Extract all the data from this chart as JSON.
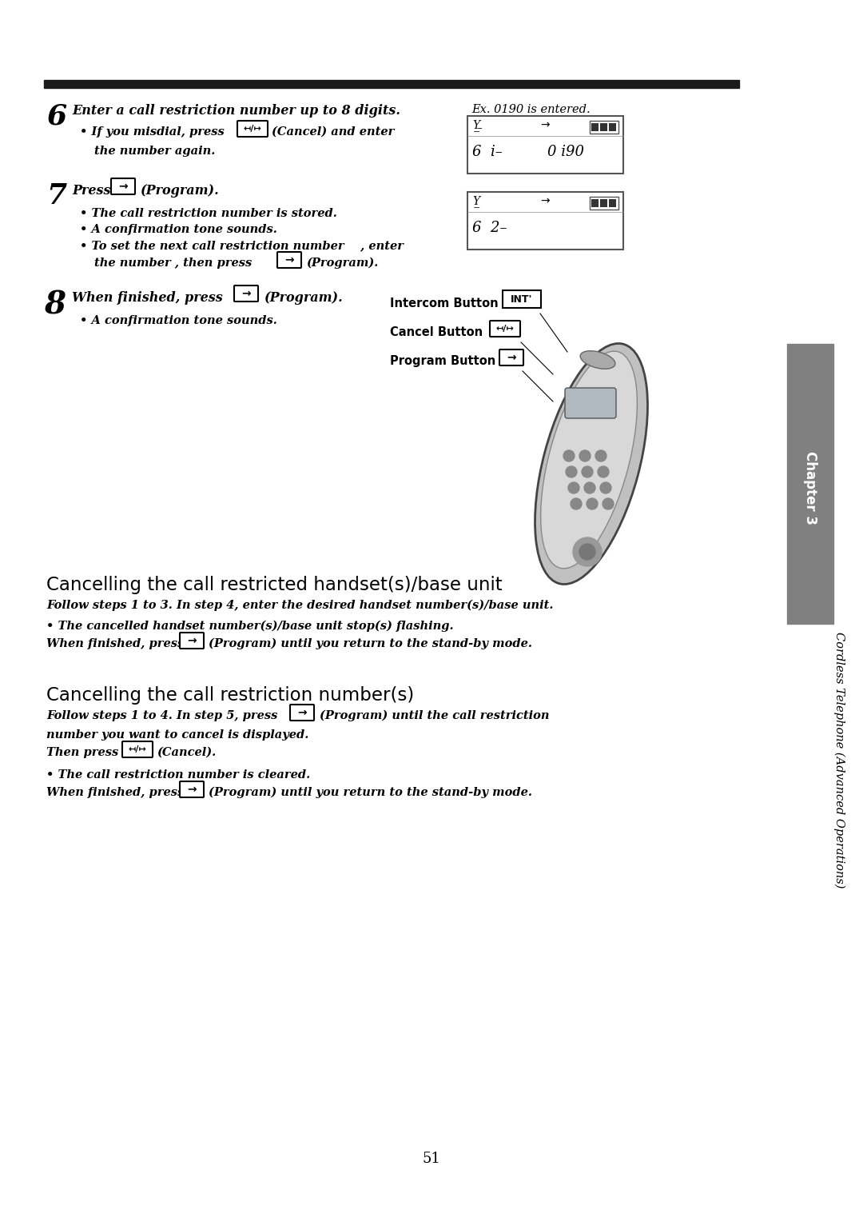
{
  "bg_color": "#ffffff",
  "text_color": "#000000",
  "page_width": 10.8,
  "page_height": 15.28,
  "top_bar_color": "#1a1a1a",
  "sidebar_color": "#808080",
  "page_number": "51",
  "section1_title": "Cancelling the call restricted handset(s)/base unit",
  "section2_title": "Cancelling the call restriction number(s)"
}
